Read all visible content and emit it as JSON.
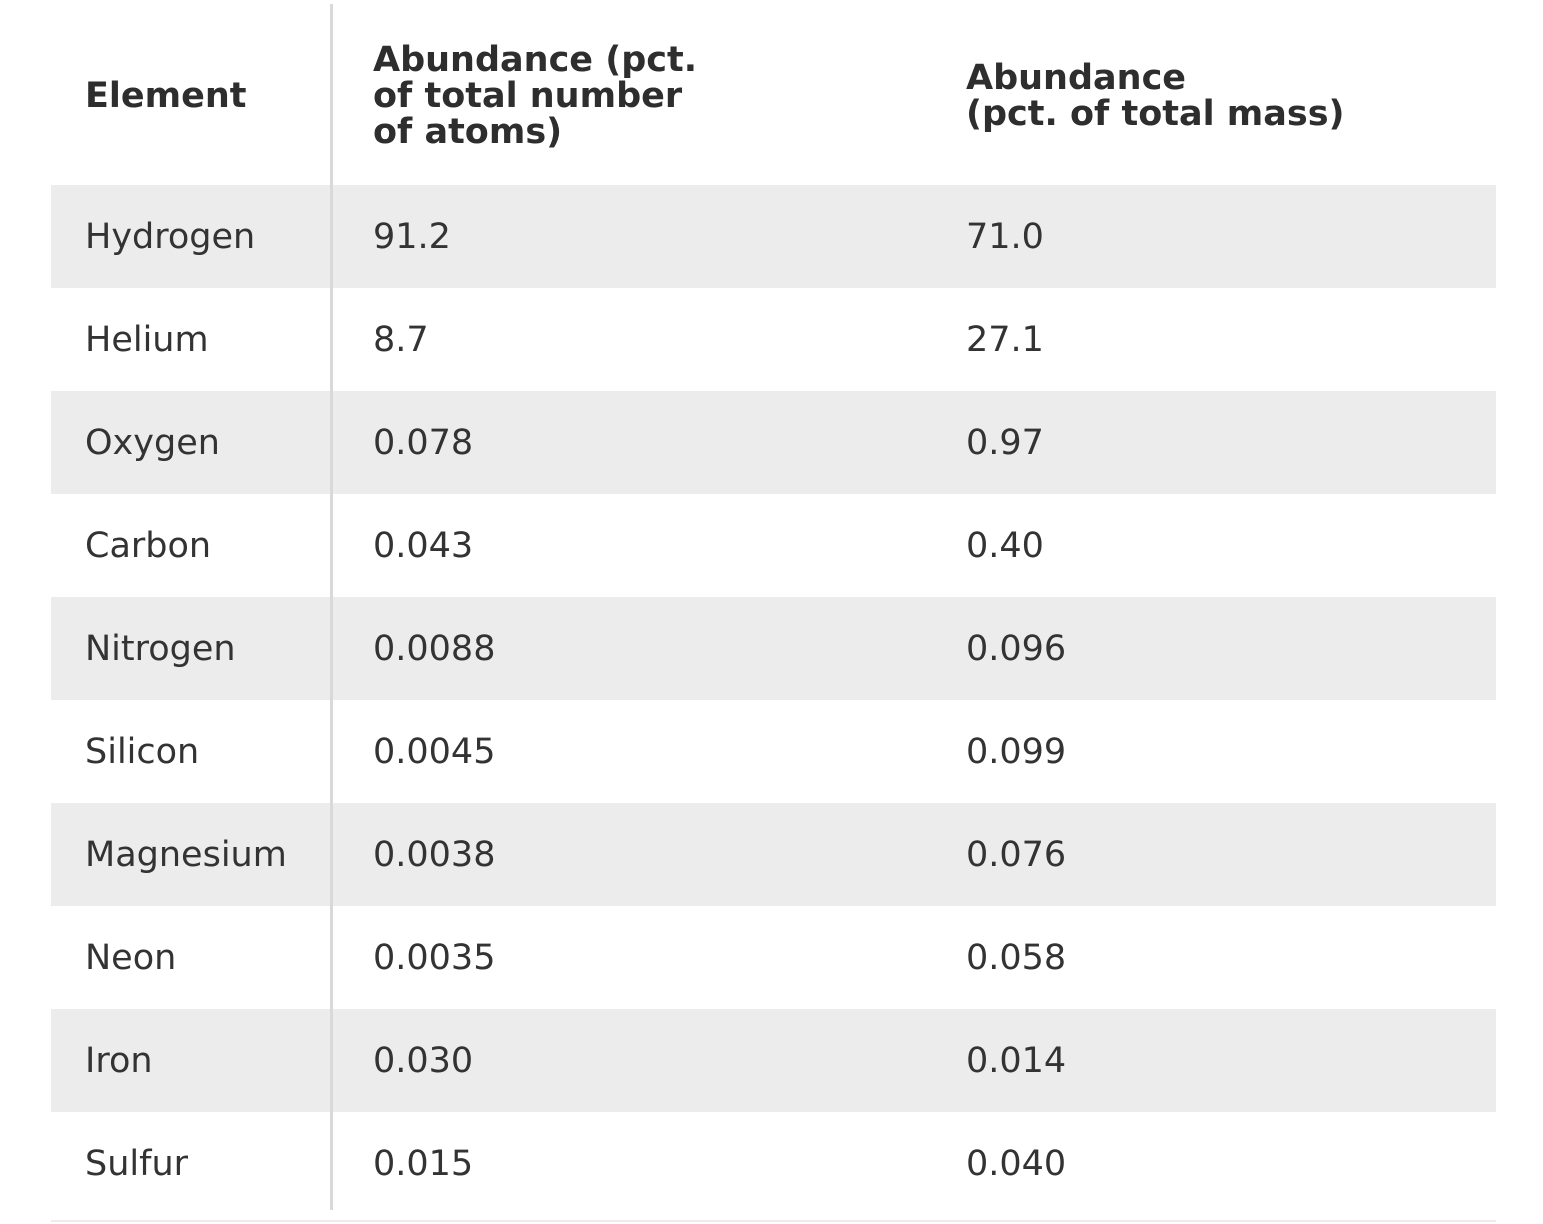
{
  "table": {
    "headers": [
      {
        "lines": [
          "Element"
        ]
      },
      {
        "lines": [
          "Abundance (pct.",
          "of total number",
          "of atoms)"
        ]
      },
      {
        "lines": [
          "Abundance",
          "(pct. of total mass)"
        ]
      }
    ],
    "rows": [
      {
        "element": "Hydrogen",
        "atoms": "91.2",
        "mass": "71.0"
      },
      {
        "element": "Helium",
        "atoms": "8.7",
        "mass": "27.1"
      },
      {
        "element": "Oxygen",
        "atoms": "0.078",
        "mass": "0.97"
      },
      {
        "element": "Carbon",
        "atoms": "0.043",
        "mass": "0.40"
      },
      {
        "element": "Nitrogen",
        "atoms": "0.0088",
        "mass": "0.096"
      },
      {
        "element": "Silicon",
        "atoms": "0.0045",
        "mass": "0.099"
      },
      {
        "element": "Magnesium",
        "atoms": "0.0038",
        "mass": "0.076"
      },
      {
        "element": "Neon",
        "atoms": "0.0035",
        "mass": "0.058"
      },
      {
        "element": "Iron",
        "atoms": "0.030",
        "mass": "0.014"
      },
      {
        "element": "Sulfur",
        "atoms": "0.015",
        "mass": "0.040"
      }
    ]
  },
  "colors": {
    "stripe": "#ececec",
    "divider": "#d9d9d9",
    "text": "#333333"
  }
}
